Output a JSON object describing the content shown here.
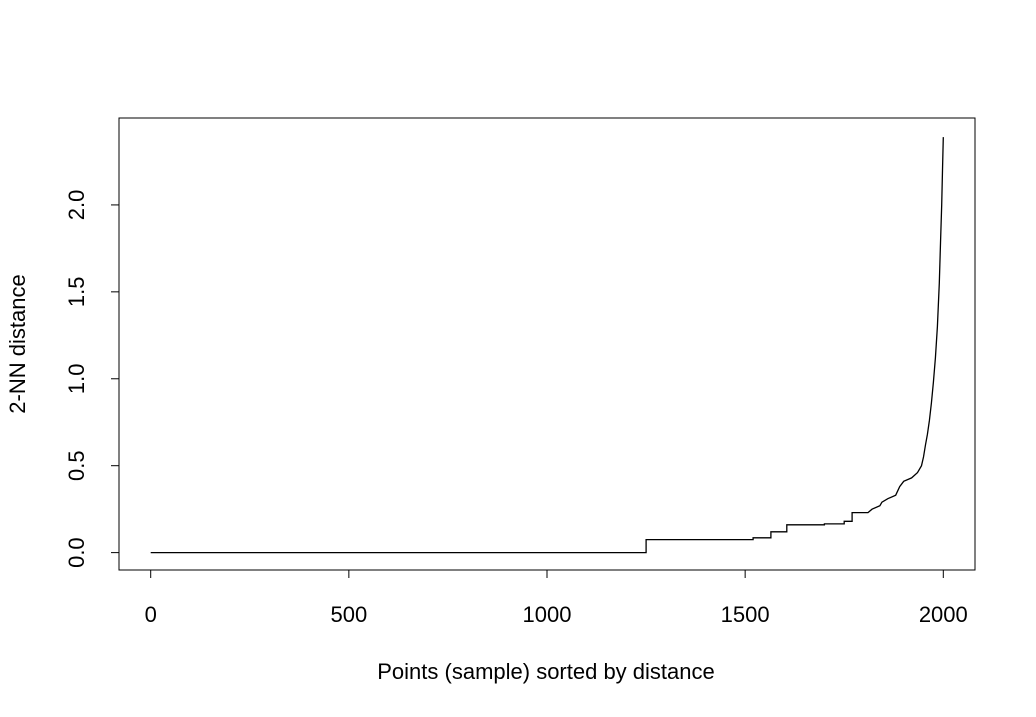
{
  "chart_data": {
    "type": "line",
    "title": "",
    "xlabel": "Points (sample) sorted by distance",
    "ylabel": "2-NN distance",
    "xlim": [
      -80,
      2080
    ],
    "ylim": [
      -0.1,
      2.5
    ],
    "xticks": [
      0,
      500,
      1000,
      1500,
      2000
    ],
    "xtick_labels": [
      "0",
      "500",
      "1000",
      "1500",
      "2000"
    ],
    "yticks": [
      0.0,
      0.5,
      1.0,
      1.5,
      2.0
    ],
    "ytick_labels": [
      "0.0",
      "0.5",
      "1.0",
      "1.5",
      "2.0"
    ],
    "grid": false,
    "line_color": "#000000",
    "series": [
      {
        "x": [
          0,
          1250,
          1250,
          1520,
          1520,
          1565,
          1565,
          1605,
          1605,
          1700,
          1700,
          1750,
          1750,
          1770,
          1770,
          1810,
          1820,
          1840,
          1845,
          1860,
          1880,
          1890,
          1900,
          1920,
          1935,
          1945,
          1950,
          1955,
          1960,
          1965,
          1970,
          1975,
          1980,
          1985,
          1990,
          1993,
          1996,
          1998,
          2000
        ],
        "y": [
          0.0,
          0.0,
          0.075,
          0.075,
          0.085,
          0.085,
          0.12,
          0.12,
          0.16,
          0.16,
          0.165,
          0.165,
          0.18,
          0.18,
          0.23,
          0.23,
          0.25,
          0.27,
          0.29,
          0.31,
          0.33,
          0.38,
          0.41,
          0.43,
          0.46,
          0.5,
          0.55,
          0.62,
          0.68,
          0.76,
          0.86,
          0.98,
          1.12,
          1.3,
          1.55,
          1.78,
          2.0,
          2.2,
          2.39
        ]
      }
    ]
  }
}
